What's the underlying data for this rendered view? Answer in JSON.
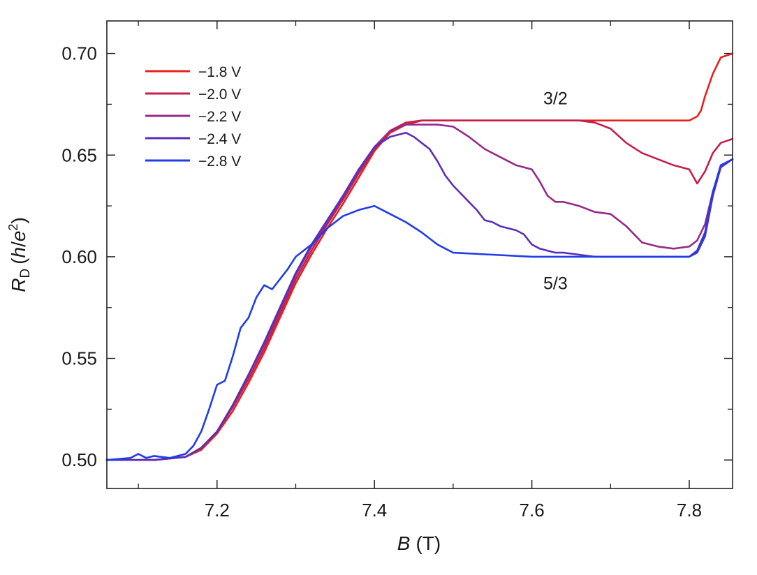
{
  "chart_data": {
    "type": "line",
    "title": "",
    "xlabel_var": "B",
    "xlabel_unit": "(T)",
    "ylabel_var": "R",
    "ylabel_sub": "D",
    "ylabel_open": "(",
    "ylabel_h": "h",
    "ylabel_slash": "/",
    "ylabel_e": "e",
    "ylabel_sup": "2",
    "ylabel_close": ")",
    "xlim": [
      7.06,
      7.855
    ],
    "ylim": [
      0.486,
      0.716
    ],
    "xticks": [
      7.2,
      7.4,
      7.6,
      7.8
    ],
    "xtick_labels": [
      "7.2",
      "7.4",
      "7.6",
      "7.8"
    ],
    "xminor": [
      7.1,
      7.3,
      7.5,
      7.7
    ],
    "yticks": [
      0.5,
      0.55,
      0.6,
      0.65,
      0.7
    ],
    "ytick_labels": [
      "0.50",
      "0.55",
      "0.60",
      "0.65",
      "0.70"
    ],
    "legend_position": "top-left",
    "annotations": [
      {
        "text": "3/2",
        "x": 7.63,
        "y": 0.675
      },
      {
        "text": "5/3",
        "x": 7.63,
        "y": 0.584
      }
    ],
    "series": [
      {
        "name": "−1.8 V",
        "color": "#e8201e",
        "x": [
          7.06,
          7.12,
          7.16,
          7.18,
          7.2,
          7.22,
          7.24,
          7.26,
          7.28,
          7.3,
          7.32,
          7.34,
          7.36,
          7.38,
          7.4,
          7.42,
          7.44,
          7.46,
          7.5,
          7.6,
          7.7,
          7.78,
          7.8,
          7.81,
          7.815,
          7.82,
          7.83,
          7.84,
          7.855
        ],
        "y": [
          0.5,
          0.5,
          0.5015,
          0.505,
          0.513,
          0.524,
          0.538,
          0.553,
          0.57,
          0.587,
          0.601,
          0.614,
          0.626,
          0.639,
          0.652,
          0.661,
          0.665,
          0.667,
          0.667,
          0.667,
          0.667,
          0.667,
          0.667,
          0.669,
          0.672,
          0.679,
          0.69,
          0.698,
          0.7
        ]
      },
      {
        "name": "−2.0 V",
        "color": "#c2204a",
        "x": [
          7.06,
          7.12,
          7.16,
          7.18,
          7.2,
          7.22,
          7.24,
          7.26,
          7.28,
          7.3,
          7.32,
          7.34,
          7.36,
          7.38,
          7.4,
          7.42,
          7.44,
          7.46,
          7.5,
          7.6,
          7.66,
          7.68,
          7.7,
          7.72,
          7.74,
          7.76,
          7.78,
          7.8,
          7.81,
          7.82,
          7.83,
          7.84,
          7.855
        ],
        "y": [
          0.5,
          0.5,
          0.5015,
          0.506,
          0.514,
          0.526,
          0.54,
          0.555,
          0.572,
          0.589,
          0.603,
          0.616,
          0.628,
          0.641,
          0.653,
          0.662,
          0.666,
          0.667,
          0.667,
          0.667,
          0.667,
          0.666,
          0.663,
          0.656,
          0.651,
          0.648,
          0.645,
          0.643,
          0.636,
          0.642,
          0.651,
          0.656,
          0.658
        ]
      },
      {
        "name": "−2.2 V",
        "color": "#952a8a",
        "x": [
          7.06,
          7.12,
          7.16,
          7.18,
          7.2,
          7.22,
          7.24,
          7.26,
          7.28,
          7.3,
          7.32,
          7.34,
          7.36,
          7.38,
          7.4,
          7.42,
          7.44,
          7.46,
          7.48,
          7.5,
          7.52,
          7.54,
          7.56,
          7.58,
          7.6,
          7.61,
          7.62,
          7.63,
          7.64,
          7.66,
          7.68,
          7.7,
          7.72,
          7.74,
          7.76,
          7.78,
          7.8,
          7.81,
          7.82,
          7.83,
          7.84,
          7.855
        ],
        "y": [
          0.5,
          0.5,
          0.5015,
          0.506,
          0.514,
          0.527,
          0.542,
          0.557,
          0.574,
          0.591,
          0.605,
          0.617,
          0.629,
          0.642,
          0.654,
          0.662,
          0.665,
          0.665,
          0.665,
          0.664,
          0.659,
          0.653,
          0.649,
          0.645,
          0.643,
          0.637,
          0.63,
          0.627,
          0.627,
          0.625,
          0.622,
          0.621,
          0.615,
          0.607,
          0.605,
          0.604,
          0.605,
          0.608,
          0.616,
          0.632,
          0.644,
          0.648
        ]
      },
      {
        "name": "−2.4 V",
        "color": "#5a2fb8",
        "x": [
          7.06,
          7.12,
          7.16,
          7.18,
          7.2,
          7.22,
          7.24,
          7.26,
          7.28,
          7.3,
          7.32,
          7.34,
          7.36,
          7.38,
          7.4,
          7.42,
          7.43,
          7.44,
          7.45,
          7.46,
          7.47,
          7.48,
          7.49,
          7.5,
          7.51,
          7.52,
          7.53,
          7.54,
          7.55,
          7.56,
          7.57,
          7.58,
          7.59,
          7.6,
          7.61,
          7.62,
          7.63,
          7.64,
          7.66,
          7.68,
          7.7,
          7.75,
          7.8,
          7.81,
          7.82,
          7.83,
          7.84,
          7.855
        ],
        "y": [
          0.5,
          0.5,
          0.5015,
          0.506,
          0.514,
          0.527,
          0.542,
          0.558,
          0.575,
          0.592,
          0.606,
          0.618,
          0.63,
          0.643,
          0.654,
          0.659,
          0.66,
          0.661,
          0.659,
          0.656,
          0.653,
          0.647,
          0.64,
          0.635,
          0.631,
          0.627,
          0.623,
          0.618,
          0.617,
          0.615,
          0.614,
          0.613,
          0.611,
          0.606,
          0.604,
          0.603,
          0.602,
          0.602,
          0.601,
          0.6,
          0.6,
          0.6,
          0.6,
          0.602,
          0.61,
          0.63,
          0.644,
          0.648
        ]
      },
      {
        "name": "−2.8 V",
        "color": "#1f3ce8",
        "x": [
          7.06,
          7.09,
          7.1,
          7.11,
          7.12,
          7.14,
          7.16,
          7.17,
          7.18,
          7.19,
          7.2,
          7.21,
          7.22,
          7.23,
          7.24,
          7.25,
          7.26,
          7.27,
          7.28,
          7.29,
          7.3,
          7.32,
          7.34,
          7.36,
          7.38,
          7.4,
          7.42,
          7.44,
          7.46,
          7.48,
          7.5,
          7.55,
          7.6,
          7.7,
          7.8,
          7.81,
          7.82,
          7.83,
          7.84,
          7.855
        ],
        "y": [
          0.5,
          0.501,
          0.503,
          0.501,
          0.502,
          0.501,
          0.503,
          0.507,
          0.514,
          0.525,
          0.537,
          0.539,
          0.551,
          0.565,
          0.57,
          0.58,
          0.586,
          0.584,
          0.589,
          0.594,
          0.6,
          0.606,
          0.614,
          0.62,
          0.623,
          0.625,
          0.621,
          0.617,
          0.612,
          0.606,
          0.602,
          0.601,
          0.6,
          0.6,
          0.6,
          0.603,
          0.612,
          0.632,
          0.645,
          0.648
        ]
      }
    ]
  }
}
